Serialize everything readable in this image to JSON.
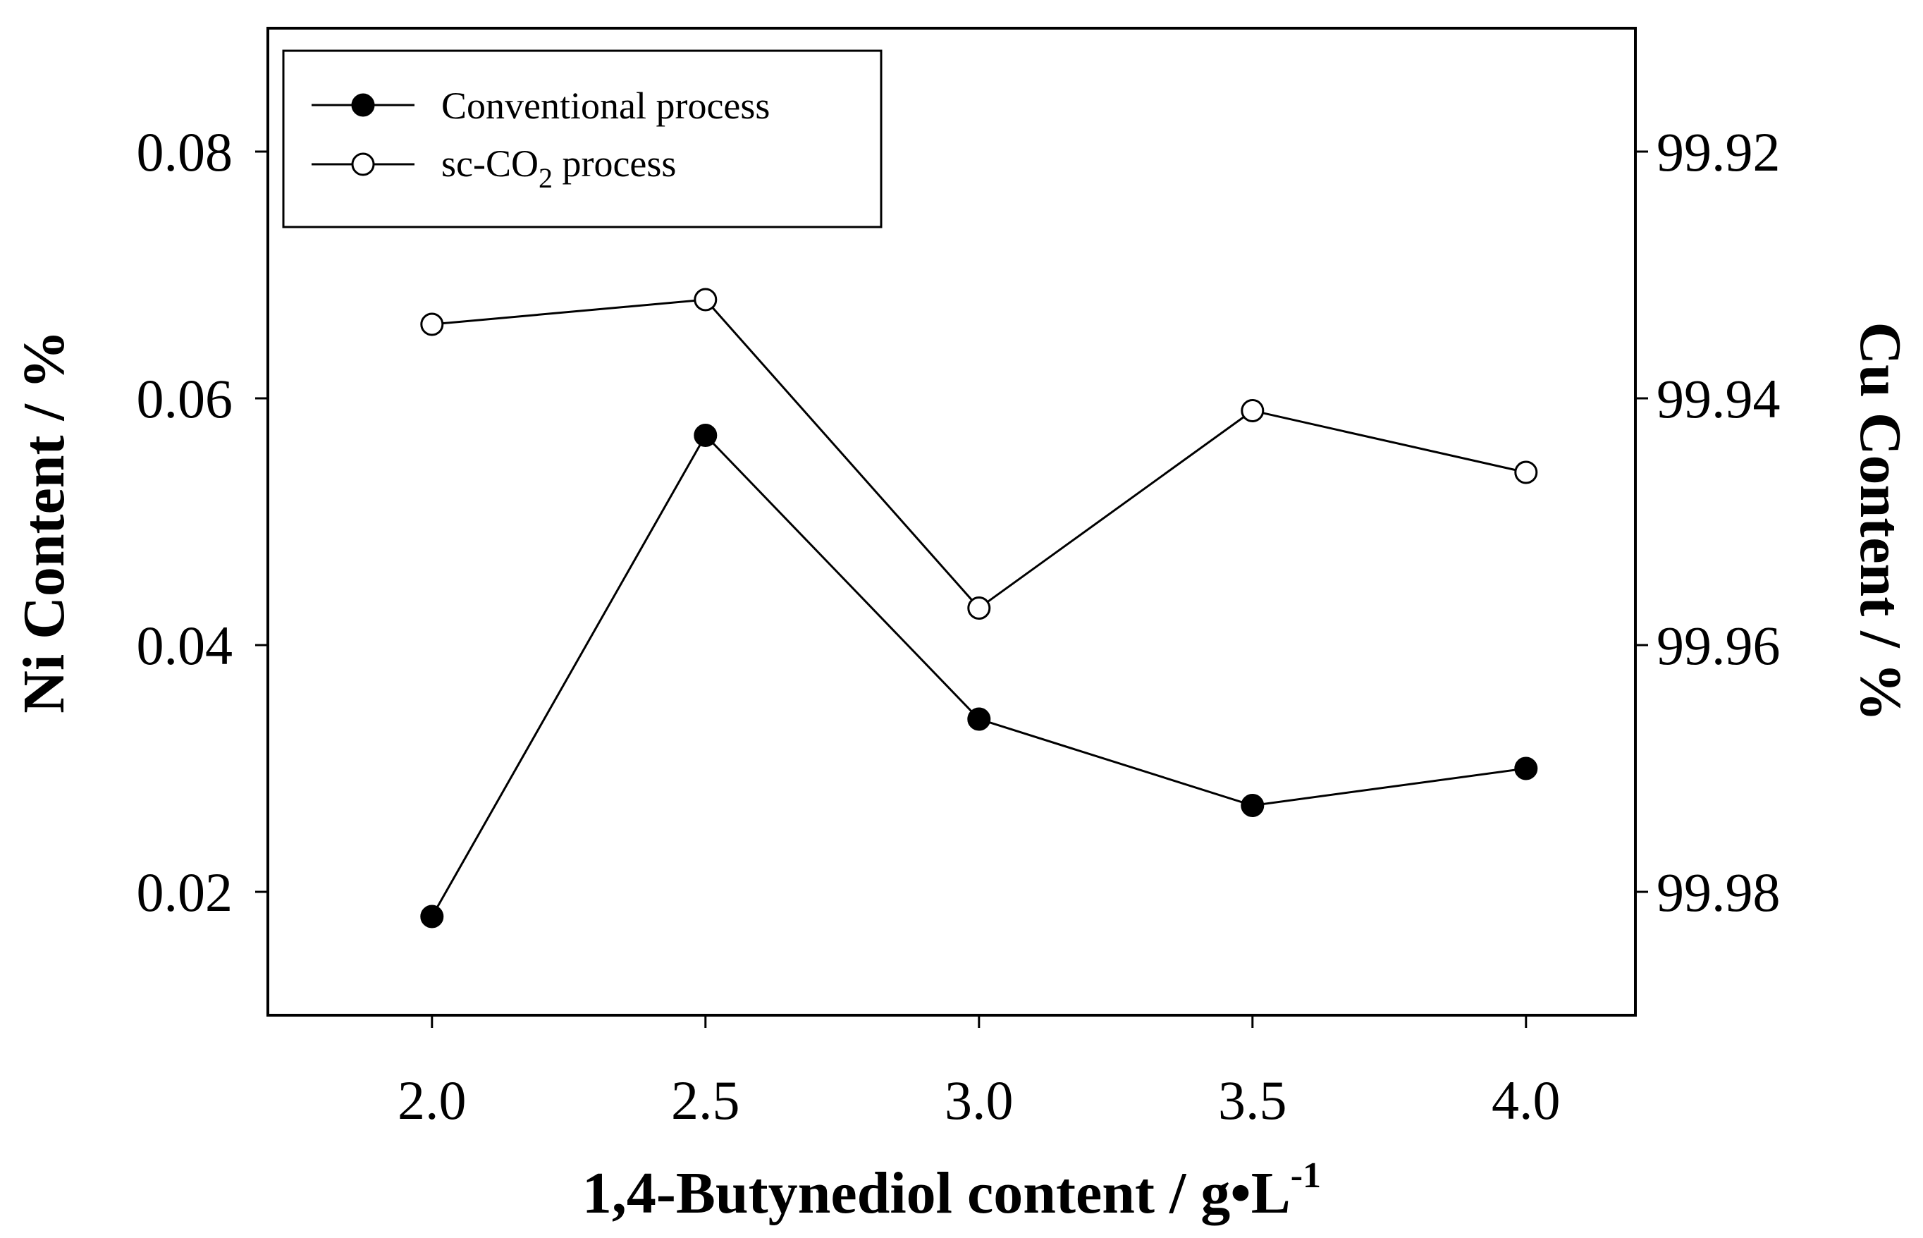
{
  "chart_data": {
    "type": "line",
    "title": "",
    "xlabel": "1,4-Butynediol content / g•L",
    "xlabel_superscript": "-1",
    "ylabel": "Ni Content / %",
    "y2label": "Cu Content / %",
    "xlim": [
      1.7,
      4.2
    ],
    "ylim": [
      0.01,
      0.09
    ],
    "y2lim": [
      99.99,
      99.91
    ],
    "y2_inverted": true,
    "x_ticks": [
      "2.0",
      "2.5",
      "3.0",
      "3.5",
      "4.0"
    ],
    "x_tick_values": [
      2.0,
      2.5,
      3.0,
      3.5,
      4.0
    ],
    "y_ticks": [
      "0.02",
      "0.04",
      "0.06",
      "0.08"
    ],
    "y_tick_values": [
      0.02,
      0.04,
      0.06,
      0.08
    ],
    "y2_ticks": [
      "99.92",
      "99.94",
      "99.96",
      "99.98"
    ],
    "y2_tick_values": [
      99.92,
      99.94,
      99.96,
      99.98
    ],
    "x": [
      2.0,
      2.5,
      3.0,
      3.5,
      4.0
    ],
    "series": [
      {
        "name": "Conventional process",
        "label_main": "Conventional process",
        "marker": "filled-circle",
        "axis": "left",
        "values": [
          0.018,
          0.057,
          0.034,
          0.027,
          0.03
        ]
      },
      {
        "name": "sc-CO2 process",
        "label_main": "sc-CO",
        "label_sub": "2",
        "label_tail": " process",
        "marker": "open-circle",
        "axis": "left",
        "values": [
          0.066,
          0.068,
          0.043,
          0.059,
          0.054
        ]
      }
    ],
    "grid": false,
    "legend_position": "top-left"
  }
}
